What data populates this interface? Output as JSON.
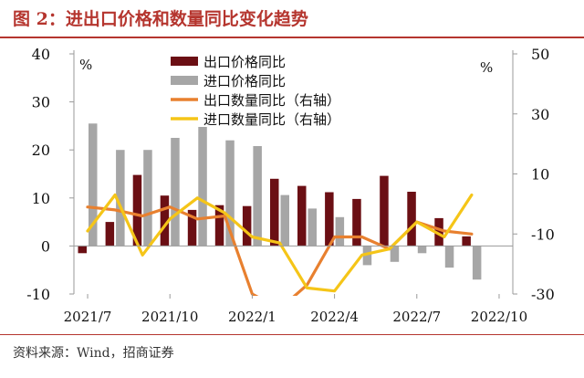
{
  "title": "图 2：进出口价格和数量同比变化趋势",
  "source": "资料来源：Wind，招商证券",
  "chart_data": {
    "type": "bar",
    "x": [
      "2021/7",
      "2021/8",
      "2021/9",
      "2021/10",
      "2021/11",
      "2021/12",
      "2022/1",
      "2022/2",
      "2022/3",
      "2022/4",
      "2022/5",
      "2022/6",
      "2022/7",
      "2022/8",
      "2022/9",
      "2022/10"
    ],
    "x_tick_labels": [
      "2021/7",
      "2021/10",
      "2022/1",
      "2022/4",
      "2022/7",
      "2022/10"
    ],
    "left_axis": {
      "unit": "%",
      "ylim": [
        -10,
        40
      ],
      "ticks": [
        -10,
        0,
        10,
        20,
        30,
        40
      ]
    },
    "right_axis": {
      "unit": "%",
      "ylim": [
        -30,
        50
      ],
      "ticks": [
        -30,
        -10,
        10,
        30,
        50
      ]
    },
    "series": [
      {
        "name": "出口价格同比",
        "kind": "bar",
        "axis": "left",
        "color": "#6b0f14",
        "values": [
          -1.5,
          5.0,
          14.8,
          10.5,
          7.5,
          8.5,
          8.3,
          14.0,
          12.5,
          11.2,
          9.8,
          14.6,
          11.3,
          5.8,
          2.0,
          null
        ]
      },
      {
        "name": "进口价格同比",
        "kind": "bar",
        "axis": "left",
        "color": "#a6a6a6",
        "values": [
          25.5,
          20.0,
          20.0,
          22.5,
          24.8,
          22.0,
          20.8,
          10.6,
          7.8,
          6.0,
          -4.0,
          -3.3,
          -1.5,
          -4.5,
          -7.0,
          null
        ]
      },
      {
        "name": "出口数量同比（右轴）",
        "kind": "line",
        "axis": "right",
        "color": "#e8802f",
        "values": [
          -1,
          -2,
          -4,
          -1,
          -5,
          -4,
          -30,
          -35,
          -27,
          -11,
          -11,
          -15,
          -6,
          -9,
          -10,
          null
        ]
      },
      {
        "name": "进口数量同比（右轴）",
        "kind": "line",
        "axis": "right",
        "color": "#f5c518",
        "values": [
          -9,
          3,
          -17,
          -5,
          2,
          -3,
          -11,
          -13,
          -28,
          -29,
          -17,
          -15,
          -6,
          -11,
          3,
          null
        ]
      }
    ],
    "legend_position": "top-center",
    "grid": false
  }
}
